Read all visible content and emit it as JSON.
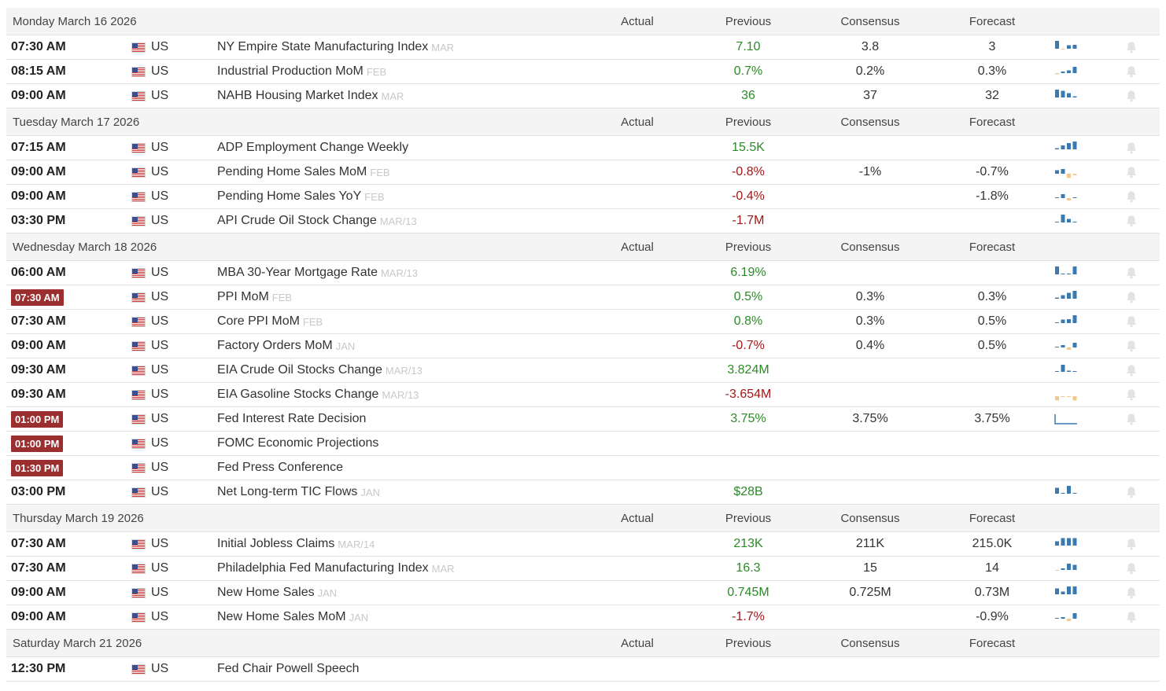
{
  "columns": {
    "actual": "Actual",
    "previous": "Previous",
    "consensus": "Consensus",
    "forecast": "Forecast"
  },
  "colors": {
    "positive": "#2c8a28",
    "negative": "#a01818",
    "spark_blue": "#3a7ab0",
    "spark_tan": "#f0c890",
    "badge": "#9b2e2e"
  },
  "days": [
    {
      "date": "Monday March 16 2026",
      "events": [
        {
          "time": "07:30 AM",
          "highlight": false,
          "country": "US",
          "event": "NY Empire State Manufacturing Index",
          "ref": "MAR",
          "actual": "",
          "previous": "7.10",
          "previous_color": "pos",
          "consensus": "3.8",
          "forecast": "3",
          "spark": [
            1,
            -0.15,
            0.45,
            0.5
          ],
          "bell": true
        },
        {
          "time": "08:15 AM",
          "highlight": false,
          "country": "US",
          "event": "Industrial Production MoM",
          "ref": "FEB",
          "actual": "",
          "previous": "0.7%",
          "previous_color": "pos",
          "consensus": "0.2%",
          "forecast": "0.3%",
          "spark": [
            -0.25,
            0.2,
            0.35,
            0.8
          ],
          "bell": true
        },
        {
          "time": "09:00 AM",
          "highlight": false,
          "country": "US",
          "event": "NAHB Housing Market Index",
          "ref": "MAR",
          "actual": "",
          "previous": "36",
          "previous_color": "pos",
          "consensus": "37",
          "forecast": "32",
          "spark": [
            1,
            0.85,
            0.55,
            0.15
          ],
          "bell": true
        }
      ]
    },
    {
      "date": "Tuesday March 17 2026",
      "events": [
        {
          "time": "07:15 AM",
          "highlight": false,
          "country": "US",
          "event": "ADP Employment Change Weekly",
          "ref": "",
          "actual": "",
          "previous": "15.5K",
          "previous_color": "pos",
          "consensus": "",
          "forecast": "",
          "spark": [
            0.15,
            0.5,
            0.8,
            1
          ],
          "bell": true
        },
        {
          "time": "09:00 AM",
          "highlight": false,
          "country": "US",
          "event": "Pending Home Sales MoM",
          "ref": "FEB",
          "actual": "",
          "previous": "-0.8%",
          "previous_color": "neg",
          "consensus": "-1%",
          "forecast": "-0.7%",
          "spark": [
            0.45,
            0.6,
            -0.9,
            -0.3
          ],
          "bell": true
        },
        {
          "time": "09:00 AM",
          "highlight": false,
          "country": "US",
          "event": "Pending Home Sales YoY",
          "ref": "FEB",
          "actual": "",
          "previous": "-0.4%",
          "previous_color": "neg",
          "consensus": "",
          "forecast": "-1.8%",
          "spark": [
            0.1,
            0.5,
            -0.5,
            0.1
          ],
          "bell": true
        },
        {
          "time": "03:30 PM",
          "highlight": false,
          "country": "US",
          "event": "API Crude Oil Stock Change",
          "ref": "MAR/13",
          "actual": "",
          "previous": "-1.7M",
          "previous_color": "neg",
          "consensus": "",
          "forecast": "",
          "spark": [
            0.1,
            1,
            0.45,
            0.1
          ],
          "bell": true
        }
      ]
    },
    {
      "date": "Wednesday March 18 2026",
      "events": [
        {
          "time": "06:00 AM",
          "highlight": false,
          "country": "US",
          "event": "MBA 30-Year Mortgage Rate",
          "ref": "MAR/13",
          "actual": "",
          "previous": "6.19%",
          "previous_color": "pos",
          "consensus": "",
          "forecast": "",
          "spark": [
            1,
            0.1,
            0.1,
            1
          ],
          "bell": true
        },
        {
          "time": "07:30 AM",
          "highlight": true,
          "country": "US",
          "event": "PPI MoM",
          "ref": "FEB",
          "actual": "",
          "previous": "0.5%",
          "previous_color": "pos",
          "consensus": "0.3%",
          "forecast": "0.3%",
          "spark": [
            0.15,
            0.45,
            0.75,
            1
          ],
          "bell": true
        },
        {
          "time": "07:30 AM",
          "highlight": false,
          "country": "US",
          "event": "Core PPI MoM",
          "ref": "FEB",
          "actual": "",
          "previous": "0.8%",
          "previous_color": "pos",
          "consensus": "0.3%",
          "forecast": "0.5%",
          "spark": [
            0.1,
            0.45,
            0.5,
            1
          ],
          "bell": true
        },
        {
          "time": "09:00 AM",
          "highlight": false,
          "country": "US",
          "event": "Factory Orders MoM",
          "ref": "JAN",
          "actual": "",
          "previous": "-0.7%",
          "previous_color": "neg",
          "consensus": "0.4%",
          "forecast": "0.5%",
          "spark": [
            0.1,
            0.3,
            -0.5,
            0.6
          ],
          "bell": true
        },
        {
          "time": "09:30 AM",
          "highlight": false,
          "country": "US",
          "event": "EIA Crude Oil Stocks Change",
          "ref": "MAR/13",
          "actual": "",
          "previous": "3.824M",
          "previous_color": "pos",
          "consensus": "",
          "forecast": "",
          "spark": [
            0.1,
            0.9,
            0.15,
            0.1
          ],
          "bell": true
        },
        {
          "time": "09:30 AM",
          "highlight": false,
          "country": "US",
          "event": "EIA Gasoline Stocks Change",
          "ref": "MAR/13",
          "actual": "",
          "previous": "-3.654M",
          "previous_color": "neg",
          "consensus": "",
          "forecast": "",
          "spark": [
            -0.9,
            -0.15,
            -0.15,
            -0.9
          ],
          "bell": true
        },
        {
          "time": "01:00 PM",
          "highlight": true,
          "country": "US",
          "event": "Fed Interest Rate Decision",
          "ref": "",
          "actual": "",
          "previous": "3.75%",
          "previous_color": "pos",
          "consensus": "3.75%",
          "forecast": "3.75%",
          "spark": "line",
          "bell": true
        },
        {
          "time": "01:00 PM",
          "highlight": true,
          "country": "US",
          "event": "FOMC Economic Projections",
          "ref": "",
          "actual": "",
          "previous": "",
          "previous_color": "neu",
          "consensus": "",
          "forecast": "",
          "spark": null,
          "bell": false
        },
        {
          "time": "01:30 PM",
          "highlight": true,
          "country": "US",
          "event": "Fed Press Conference",
          "ref": "",
          "actual": "",
          "previous": "",
          "previous_color": "neu",
          "consensus": "",
          "forecast": "",
          "spark": null,
          "bell": false
        },
        {
          "time": "03:00 PM",
          "highlight": false,
          "country": "US",
          "event": "Net Long-term TIC Flows",
          "ref": "JAN",
          "actual": "",
          "previous": "$28B",
          "previous_color": "pos",
          "consensus": "",
          "forecast": "",
          "spark": [
            0.75,
            0.1,
            1,
            0.1
          ],
          "bell": true
        }
      ]
    },
    {
      "date": "Thursday March 19 2026",
      "events": [
        {
          "time": "07:30 AM",
          "highlight": false,
          "country": "US",
          "event": "Initial Jobless Claims",
          "ref": "MAR/14",
          "actual": "",
          "previous": "213K",
          "previous_color": "pos",
          "consensus": "211K",
          "forecast": "215.0K",
          "spark": [
            0.55,
            0.95,
            0.95,
            0.95
          ],
          "bell": true
        },
        {
          "time": "07:30 AM",
          "highlight": false,
          "country": "US",
          "event": "Philadelphia Fed Manufacturing Index",
          "ref": "MAR",
          "actual": "",
          "previous": "16.3",
          "previous_color": "pos",
          "consensus": "15",
          "forecast": "14",
          "spark": [
            -0.15,
            0.2,
            0.8,
            0.65
          ],
          "bell": true
        },
        {
          "time": "09:00 AM",
          "highlight": false,
          "country": "US",
          "event": "New Home Sales",
          "ref": "JAN",
          "actual": "",
          "previous": "0.745M",
          "previous_color": "pos",
          "consensus": "0.725M",
          "forecast": "0.73M",
          "spark": [
            0.75,
            0.35,
            1,
            1
          ],
          "bell": true
        },
        {
          "time": "09:00 AM",
          "highlight": false,
          "country": "US",
          "event": "New Home Sales MoM",
          "ref": "JAN",
          "actual": "",
          "previous": "-1.7%",
          "previous_color": "neg",
          "consensus": "",
          "forecast": "-0.9%",
          "spark": [
            0.1,
            0.2,
            -0.5,
            0.7
          ],
          "bell": true
        }
      ]
    },
    {
      "date": "Saturday March 21 2026",
      "events": [
        {
          "time": "12:30 PM",
          "highlight": false,
          "country": "US",
          "event": "Fed Chair Powell Speech",
          "ref": "",
          "actual": "",
          "previous": "",
          "previous_color": "neu",
          "consensus": "",
          "forecast": "",
          "spark": null,
          "bell": false
        }
      ]
    }
  ]
}
